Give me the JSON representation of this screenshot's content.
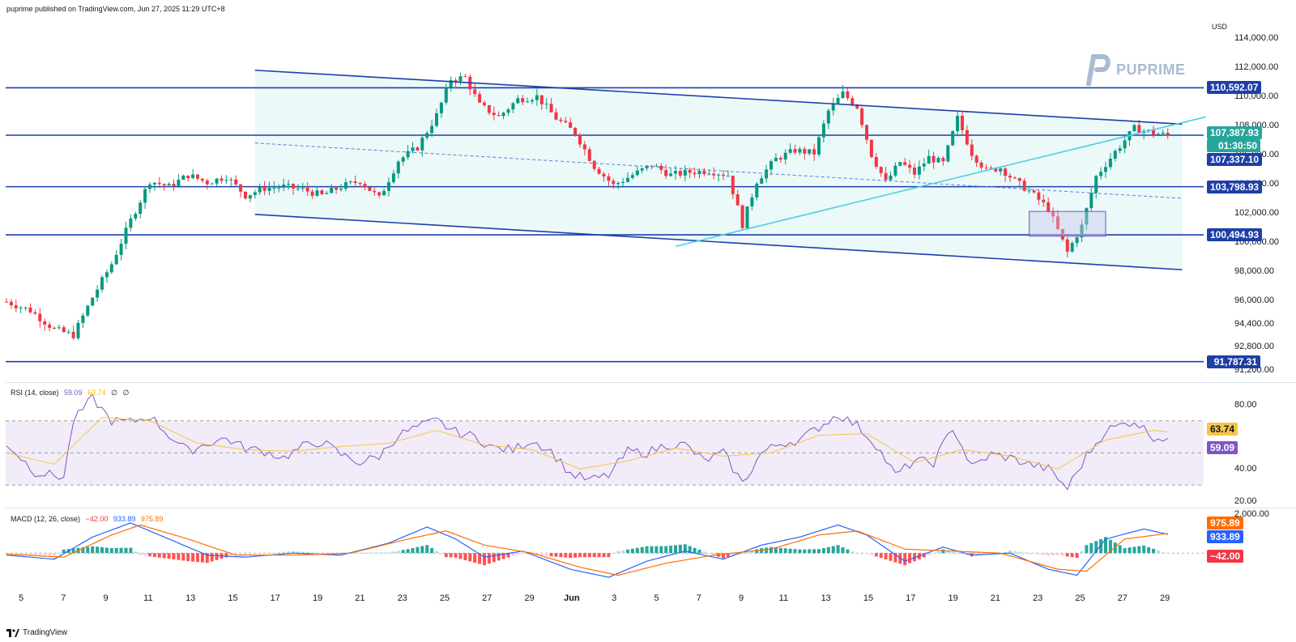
{
  "header": {
    "published": "puprime published on TradingView.com, Jun 27, 2025 11:29 UTC+8"
  },
  "brand": {
    "logo_text": "PUPRIME",
    "footer": "TradingView",
    "footer_icon": "tradingview-logo-icon"
  },
  "price_axis": {
    "currency": "USD",
    "ticks": [
      "114,000.00",
      "112,000.00",
      "110,000.00",
      "108,000.00",
      "106,000.00",
      "104,000.00",
      "102,000.00",
      "100,000.00",
      "98,000.00",
      "96,000.00",
      "94,400.00",
      "92,800.00",
      "91,200.00"
    ],
    "levels": [
      {
        "value": "110,592.07",
        "color": "#1e3fa8"
      },
      {
        "value": "107,387.93",
        "color": "#26a69a"
      },
      {
        "value": "01:30:50",
        "color": "#26a69a"
      },
      {
        "value": "107,337.10",
        "color": "#1e3fa8"
      },
      {
        "value": "103,798.93",
        "color": "#1e3fa8"
      },
      {
        "value": "100,494.93",
        "color": "#1e3fa8"
      },
      {
        "value": "91,787.31",
        "color": "#1e3fa8"
      }
    ]
  },
  "rsi": {
    "title": "RSI (14, close)",
    "rsi_value": "59.09",
    "ma_value": "63.74",
    "extra1": "∅",
    "extra2": "∅",
    "ticks": [
      "80.00",
      "40.00",
      "20.00"
    ],
    "labels": [
      {
        "value": "63.74",
        "color": "#f7c548",
        "text_color": "#131722"
      },
      {
        "value": "59.09",
        "color": "#7e57c2",
        "text_color": "#ffffff"
      }
    ]
  },
  "macd": {
    "title": "MACD (12, 26, close)",
    "hist": "−42.00",
    "macd": "933.89",
    "signal": "975.89",
    "ticks": [
      "2,000.00"
    ],
    "labels": [
      {
        "value": "975.89",
        "color": "#ff6d00"
      },
      {
        "value": "933.89",
        "color": "#2962ff"
      },
      {
        "value": "−42.00",
        "color": "#f23645"
      }
    ]
  },
  "x_axis": {
    "labels": [
      "5",
      "7",
      "9",
      "11",
      "13",
      "15",
      "17",
      "19",
      "21",
      "23",
      "25",
      "27",
      "29",
      "Jun",
      "3",
      "5",
      "7",
      "9",
      "11",
      "13",
      "15",
      "17",
      "19",
      "21",
      "23",
      "25",
      "27",
      "29"
    ]
  },
  "chart_data": {
    "type": "candlestick",
    "symbol_currency": "USD",
    "last_price": 107387.93,
    "horizontal_levels": [
      110592.07,
      107337.1,
      103798.93,
      100494.93,
      91787.31
    ],
    "price_range": [
      90600,
      115400
    ],
    "close_path": [
      [
        0,
        95900
      ],
      [
        5,
        95300
      ],
      [
        10,
        94000
      ],
      [
        14,
        93600
      ],
      [
        18,
        96200
      ],
      [
        22,
        98500
      ],
      [
        26,
        101500
      ],
      [
        30,
        104200
      ],
      [
        34,
        103800
      ],
      [
        38,
        104600
      ],
      [
        42,
        104100
      ],
      [
        46,
        104500
      ],
      [
        50,
        103200
      ],
      [
        54,
        103700
      ],
      [
        58,
        103800
      ],
      [
        62,
        103600
      ],
      [
        66,
        103200
      ],
      [
        70,
        103800
      ],
      [
        74,
        104200
      ],
      [
        78,
        103000
      ],
      [
        82,
        105600
      ],
      [
        86,
        106500
      ],
      [
        90,
        108700
      ],
      [
        93,
        111200
      ],
      [
        96,
        111300
      ],
      [
        99,
        109400
      ],
      [
        103,
        108600
      ],
      [
        107,
        109800
      ],
      [
        111,
        110000
      ],
      [
        115,
        108500
      ],
      [
        119,
        107500
      ],
      [
        123,
        105200
      ],
      [
        127,
        103900
      ],
      [
        131,
        104600
      ],
      [
        135,
        105300
      ],
      [
        139,
        104600
      ],
      [
        143,
        104800
      ],
      [
        147,
        104900
      ],
      [
        151,
        104600
      ],
      [
        154,
        101200
      ],
      [
        157,
        104200
      ],
      [
        161,
        105700
      ],
      [
        165,
        106300
      ],
      [
        169,
        106100
      ],
      [
        172,
        109000
      ],
      [
        175,
        110200
      ],
      [
        178,
        109300
      ],
      [
        181,
        106000
      ],
      [
        184,
        104100
      ],
      [
        187,
        105500
      ],
      [
        190,
        104700
      ],
      [
        193,
        105800
      ],
      [
        196,
        105400
      ],
      [
        199,
        108500
      ],
      [
        202,
        106100
      ],
      [
        205,
        104900
      ],
      [
        208,
        105100
      ],
      [
        211,
        104200
      ],
      [
        214,
        103500
      ],
      [
        218,
        102300
      ],
      [
        222,
        99300
      ],
      [
        225,
        101100
      ],
      [
        228,
        104500
      ],
      [
        232,
        106200
      ],
      [
        236,
        107800
      ],
      [
        240,
        107500
      ],
      [
        243,
        107300
      ]
    ],
    "channel": {
      "upper": [
        [
          52,
          111800
        ],
        [
          246,
          108100
        ]
      ],
      "lower": [
        [
          52,
          101900
        ],
        [
          246,
          98100
        ]
      ],
      "mid": [
        [
          52,
          106800
        ],
        [
          246,
          103000
        ]
      ]
    },
    "trendline": [
      [
        140,
        99700
      ],
      [
        251,
        108600
      ]
    ],
    "rsi_range": [
      18,
      92
    ],
    "rsi_bands": [
      30,
      50,
      70
    ],
    "rsi_values": [
      [
        0,
        56
      ],
      [
        6,
        38
      ],
      [
        12,
        35
      ],
      [
        14,
        70
      ],
      [
        18,
        84
      ],
      [
        22,
        70
      ],
      [
        26,
        69
      ],
      [
        30,
        73
      ],
      [
        34,
        61
      ],
      [
        38,
        51
      ],
      [
        42,
        56
      ],
      [
        46,
        59
      ],
      [
        50,
        53
      ],
      [
        54,
        51
      ],
      [
        58,
        47
      ],
      [
        62,
        54
      ],
      [
        66,
        57
      ],
      [
        70,
        49
      ],
      [
        74,
        44
      ],
      [
        78,
        48
      ],
      [
        82,
        61
      ],
      [
        86,
        66
      ],
      [
        90,
        70
      ],
      [
        94,
        63
      ],
      [
        98,
        60
      ],
      [
        102,
        53
      ],
      [
        106,
        52
      ],
      [
        110,
        58
      ],
      [
        114,
        51
      ],
      [
        118,
        37
      ],
      [
        122,
        33
      ],
      [
        126,
        36
      ],
      [
        130,
        51
      ],
      [
        134,
        50
      ],
      [
        138,
        55
      ],
      [
        142,
        55
      ],
      [
        146,
        45
      ],
      [
        150,
        50
      ],
      [
        154,
        31
      ],
      [
        158,
        50
      ],
      [
        162,
        56
      ],
      [
        166,
        58
      ],
      [
        170,
        66
      ],
      [
        174,
        74
      ],
      [
        178,
        67
      ],
      [
        182,
        55
      ],
      [
        186,
        36
      ],
      [
        190,
        45
      ],
      [
        194,
        44
      ],
      [
        198,
        66
      ],
      [
        202,
        41
      ],
      [
        206,
        49
      ],
      [
        210,
        47
      ],
      [
        214,
        43
      ],
      [
        218,
        40
      ],
      [
        222,
        28
      ],
      [
        226,
        48
      ],
      [
        230,
        64
      ],
      [
        236,
        70
      ],
      [
        240,
        60
      ],
      [
        243,
        59
      ]
    ],
    "rsi_ma": [
      [
        0,
        50
      ],
      [
        10,
        43
      ],
      [
        20,
        72
      ],
      [
        30,
        70
      ],
      [
        40,
        56
      ],
      [
        50,
        52
      ],
      [
        60,
        51
      ],
      [
        70,
        54
      ],
      [
        80,
        56
      ],
      [
        90,
        64
      ],
      [
        100,
        55
      ],
      [
        110,
        52
      ],
      [
        120,
        40
      ],
      [
        130,
        45
      ],
      [
        140,
        53
      ],
      [
        150,
        48
      ],
      [
        160,
        50
      ],
      [
        170,
        61
      ],
      [
        180,
        62
      ],
      [
        190,
        44
      ],
      [
        200,
        52
      ],
      [
        210,
        48
      ],
      [
        220,
        40
      ],
      [
        230,
        58
      ],
      [
        240,
        64
      ],
      [
        243,
        63
      ]
    ],
    "macd_range": [
      -1800,
      2100
    ],
    "macd_values": [
      [
        0,
        -100
      ],
      [
        10,
        -300
      ],
      [
        18,
        800
      ],
      [
        26,
        1500
      ],
      [
        34,
        700
      ],
      [
        42,
        -100
      ],
      [
        50,
        -200
      ],
      [
        60,
        0
      ],
      [
        70,
        -100
      ],
      [
        80,
        500
      ],
      [
        88,
        1300
      ],
      [
        94,
        700
      ],
      [
        100,
        -200
      ],
      [
        108,
        100
      ],
      [
        118,
        -800
      ],
      [
        126,
        -1200
      ],
      [
        134,
        -400
      ],
      [
        142,
        100
      ],
      [
        150,
        -300
      ],
      [
        158,
        400
      ],
      [
        166,
        800
      ],
      [
        174,
        1400
      ],
      [
        180,
        900
      ],
      [
        188,
        -400
      ],
      [
        196,
        300
      ],
      [
        202,
        -100
      ],
      [
        210,
        0
      ],
      [
        218,
        -800
      ],
      [
        224,
        -1100
      ],
      [
        230,
        700
      ],
      [
        238,
        1200
      ],
      [
        243,
        934
      ]
    ],
    "macd_signal": [
      [
        0,
        -50
      ],
      [
        12,
        -200
      ],
      [
        22,
        900
      ],
      [
        28,
        1400
      ],
      [
        38,
        700
      ],
      [
        48,
        -100
      ],
      [
        60,
        -100
      ],
      [
        72,
        0
      ],
      [
        84,
        700
      ],
      [
        92,
        1100
      ],
      [
        100,
        400
      ],
      [
        110,
        0
      ],
      [
        120,
        -700
      ],
      [
        128,
        -1100
      ],
      [
        138,
        -500
      ],
      [
        148,
        -100
      ],
      [
        160,
        200
      ],
      [
        170,
        900
      ],
      [
        178,
        1100
      ],
      [
        188,
        200
      ],
      [
        198,
        100
      ],
      [
        208,
        0
      ],
      [
        220,
        -800
      ],
      [
        226,
        -900
      ],
      [
        234,
        700
      ],
      [
        243,
        976
      ]
    ],
    "macd_hist": -42.0
  }
}
